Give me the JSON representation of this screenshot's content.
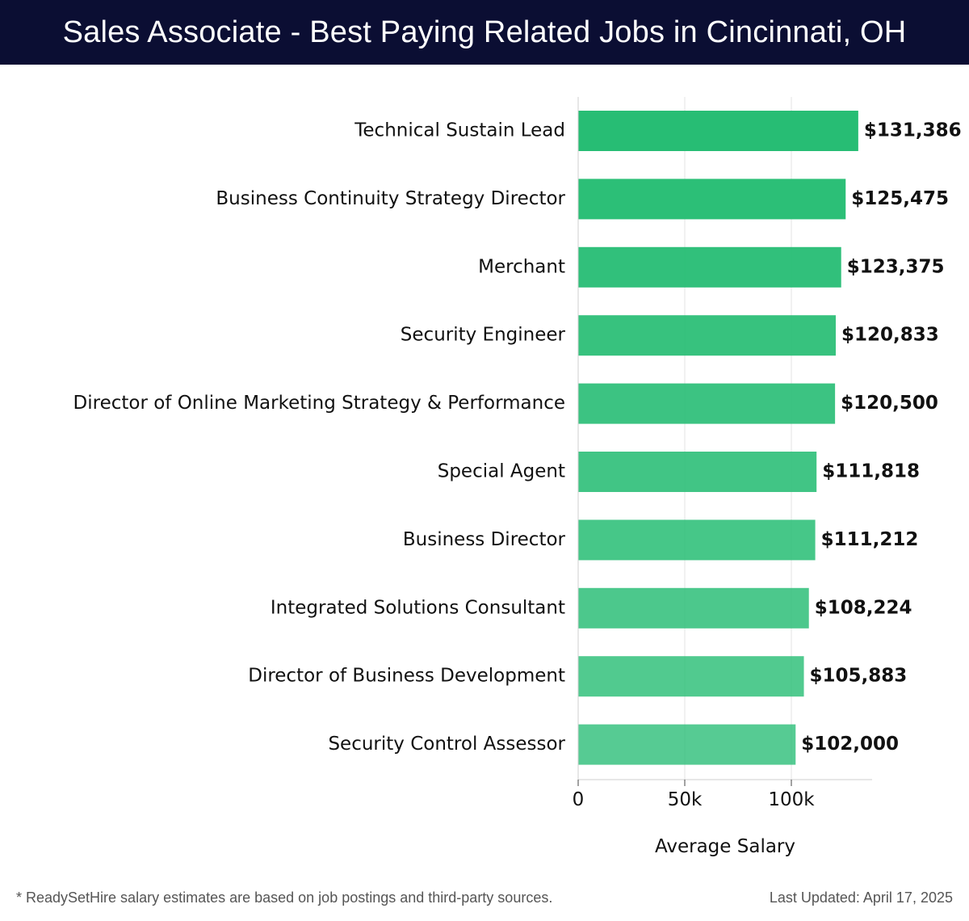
{
  "header": {
    "title": "Sales Associate - Best Paying Related Jobs in Cincinnati, OH"
  },
  "chart_data": {
    "type": "bar",
    "orientation": "horizontal",
    "categories": [
      "Technical Sustain Lead",
      "Business Continuity Strategy Director",
      "Merchant",
      "Security Engineer",
      "Director of Online Marketing Strategy & Performance",
      "Special Agent",
      "Business Director",
      "Integrated Solutions Consultant",
      "Director of Business Development",
      "Security Control Assessor"
    ],
    "values": [
      131386,
      125475,
      123375,
      120833,
      120500,
      111818,
      111212,
      108224,
      105883,
      102000
    ],
    "value_labels": [
      "$131,386",
      "$125,475",
      "$123,375",
      "$120,833",
      "$120,500",
      "$111,818",
      "$111,212",
      "$108,224",
      "$105,883",
      "$102,000"
    ],
    "title": "Sales Associate - Best Paying Related Jobs in Cincinnati, OH",
    "xlabel": "Average Salary",
    "ylabel": "",
    "xlim": [
      0,
      138000
    ],
    "x_ticks": [
      0,
      50000,
      100000
    ],
    "x_tick_labels": [
      "0",
      "50k",
      "100k"
    ],
    "grid": "vertical",
    "bar_color": "#27bd74",
    "bar_opacity_range": [
      1.0,
      0.78
    ]
  },
  "footer": {
    "note": "* ReadySetHire salary estimates are based on job postings and third-party sources.",
    "updated": "Last Updated: April 17, 2025"
  }
}
